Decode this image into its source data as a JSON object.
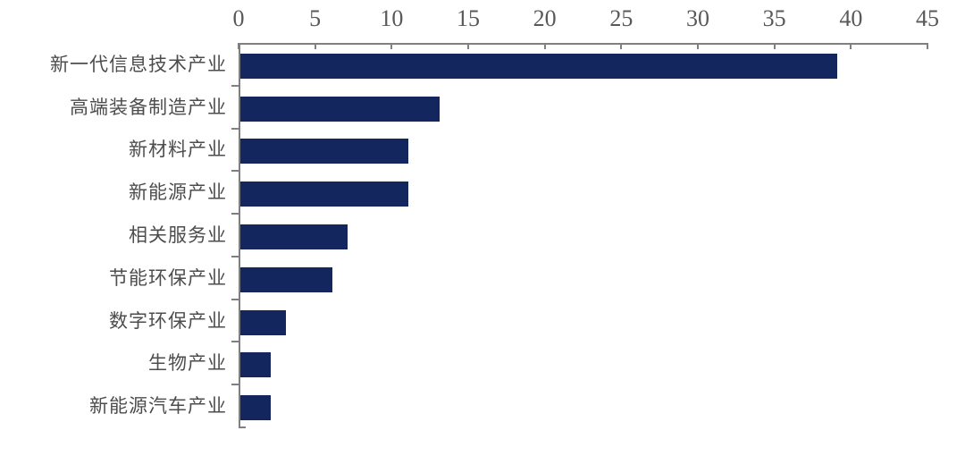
{
  "chart_data": {
    "type": "bar",
    "orientation": "horizontal",
    "title": "",
    "xlabel": "",
    "ylabel": "",
    "categories": [
      "新一代信息技术产业",
      "高端装备制造产业",
      "新材料产业",
      "新能源产业",
      "相关服务业",
      "节能环保产业",
      "数字环保产业",
      "生物产业",
      "新能源汽车产业"
    ],
    "values": [
      39,
      13,
      11,
      11,
      7,
      6,
      3,
      2,
      2
    ],
    "xlim": [
      0,
      45
    ],
    "x_ticks": [
      0,
      5,
      10,
      15,
      20,
      25,
      30,
      35,
      40,
      45
    ],
    "x_axis_position": "top",
    "grid": false,
    "legend_position": "none",
    "colors": {
      "bar": "#13275e",
      "axis": "#808080",
      "tick_label": "#595959",
      "category_label": "#4d4d4d",
      "background": "#ffffff"
    }
  }
}
